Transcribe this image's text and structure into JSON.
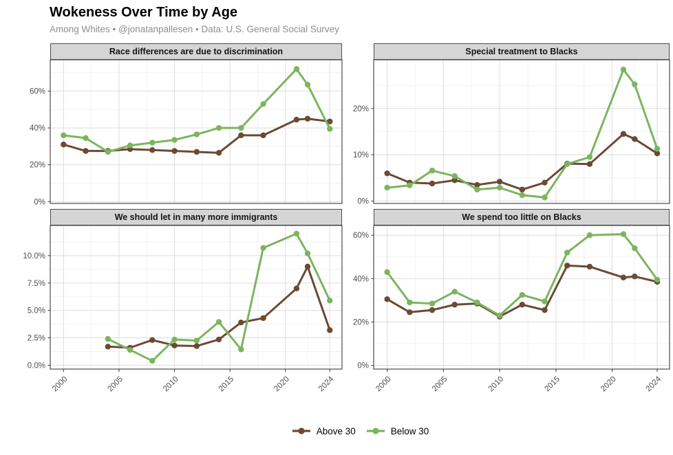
{
  "header": {
    "title": "Wokeness Over Time by Age",
    "subtitle": "Among Whites • @jonatanpallesen • Data: U.S. General Social Survey"
  },
  "legend": {
    "items": [
      {
        "label": "Above 30",
        "color": "#6b4a33"
      },
      {
        "label": "Below 30",
        "color": "#7bb55e"
      }
    ]
  },
  "chart_data": [
    {
      "type": "line",
      "title": "Race differences are due to discrimination",
      "x": [
        2000,
        2002,
        2004,
        2006,
        2008,
        2010,
        2012,
        2014,
        2016,
        2018,
        2021,
        2022,
        2024
      ],
      "series": [
        {
          "name": "Above 30",
          "color": "#6b4a33",
          "values": [
            31,
            27.5,
            27.5,
            28.5,
            28,
            27.5,
            27,
            26.5,
            36,
            36,
            44.5,
            45,
            43.5
          ]
        },
        {
          "name": "Below 30",
          "color": "#7bb55e",
          "values": [
            36,
            34.5,
            27,
            30.5,
            32,
            33.5,
            36.5,
            40,
            40,
            53,
            72,
            63.5,
            39.5
          ]
        }
      ],
      "ylim": [
        -1,
        77
      ],
      "yticks": [
        0,
        20,
        40,
        60
      ],
      "ytick_labels": [
        "0%",
        "20%",
        "40%",
        "60%"
      ],
      "yticks_minor": [
        10,
        30,
        50,
        70
      ],
      "xlim": [
        1998.8,
        2025.1
      ],
      "xticks": [
        2000,
        2005,
        2010,
        2015,
        2020,
        2024
      ],
      "xtick_labels": [
        "2000",
        "2005",
        "2010",
        "2015",
        "2020",
        "2024"
      ],
      "xticks_minor": [
        2002.5,
        2007.5,
        2012.5,
        2017.5,
        2022
      ],
      "grid": true,
      "legend_position": "bottom"
    },
    {
      "type": "line",
      "title": "Special treatment to Blacks",
      "x": [
        2000,
        2002,
        2004,
        2006,
        2008,
        2010,
        2012,
        2014,
        2016,
        2018,
        2021,
        2022,
        2024
      ],
      "series": [
        {
          "name": "Above 30",
          "color": "#6b4a33",
          "values": [
            6,
            4,
            3.8,
            4.5,
            3.5,
            4.2,
            2.5,
            4,
            8.1,
            8,
            14.5,
            13.4,
            10.3
          ]
        },
        {
          "name": "Below 30",
          "color": "#7bb55e",
          "values": [
            2.9,
            3.4,
            6.6,
            5.4,
            2.5,
            2.9,
            1.3,
            0.8,
            8,
            9.5,
            28.4,
            25.2,
            11.3
          ]
        }
      ],
      "ylim": [
        -0.5,
        30.5
      ],
      "yticks": [
        0,
        10,
        20
      ],
      "ytick_labels": [
        "0%",
        "10%",
        "20%"
      ],
      "yticks_minor": [
        5,
        15,
        25
      ],
      "xlim": [
        1998.8,
        2025.1
      ],
      "xticks": [
        2000,
        2005,
        2010,
        2015,
        2020,
        2024
      ],
      "xtick_labels": [
        "2000",
        "2005",
        "2010",
        "2015",
        "2020",
        "2024"
      ],
      "xticks_minor": [
        2002.5,
        2007.5,
        2012.5,
        2017.5,
        2022
      ],
      "grid": true,
      "legend_position": "bottom"
    },
    {
      "type": "line",
      "title": "We should let in many more immigrants",
      "x": [
        2004,
        2006,
        2008,
        2010,
        2012,
        2014,
        2016,
        2018,
        2021,
        2022,
        2024
      ],
      "series": [
        {
          "name": "Above 30",
          "color": "#6b4a33",
          "values": [
            1.7,
            1.6,
            2.3,
            1.8,
            1.75,
            2.35,
            3.9,
            4.3,
            7,
            9,
            3.2
          ]
        },
        {
          "name": "Below 30",
          "color": "#7bb55e",
          "values": [
            2.4,
            1.4,
            0.4,
            2.35,
            2.25,
            3.95,
            1.45,
            10.7,
            12,
            10.2,
            5.9
          ]
        }
      ],
      "ylim": [
        -0.35,
        12.75
      ],
      "yticks": [
        0,
        2.5,
        5,
        7.5,
        10
      ],
      "ytick_labels": [
        "0.0%",
        "2.5%",
        "5.0%",
        "7.5%",
        "10.0%"
      ],
      "yticks_minor": [
        1.25,
        3.75,
        6.25,
        8.75,
        11.25
      ],
      "xlim": [
        1998.8,
        2025.1
      ],
      "xticks": [
        2000,
        2005,
        2010,
        2015,
        2020,
        2024
      ],
      "xtick_labels": [
        "2000",
        "2005",
        "2010",
        "2015",
        "2020",
        "2024"
      ],
      "xticks_minor": [
        2002.5,
        2007.5,
        2012.5,
        2017.5,
        2022
      ],
      "grid": true,
      "legend_position": "bottom"
    },
    {
      "type": "line",
      "title": "We spend too little on Blacks",
      "x": [
        2000,
        2002,
        2004,
        2006,
        2008,
        2010,
        2012,
        2014,
        2016,
        2018,
        2021,
        2022,
        2024
      ],
      "series": [
        {
          "name": "Above 30",
          "color": "#6b4a33",
          "values": [
            30.5,
            24.5,
            25.5,
            28,
            28.5,
            22.5,
            28,
            25.5,
            46,
            45.5,
            40.5,
            41,
            38.5
          ]
        },
        {
          "name": "Below 30",
          "color": "#7bb55e",
          "values": [
            43,
            29,
            28.5,
            34,
            29,
            23,
            32.5,
            29.5,
            52,
            60,
            60.5,
            54,
            39.5
          ]
        }
      ],
      "ylim": [
        -1.7,
        64.5
      ],
      "yticks": [
        0,
        20,
        40,
        60
      ],
      "ytick_labels": [
        "0%",
        "20%",
        "40%",
        "60%"
      ],
      "yticks_minor": [
        10,
        30,
        50
      ],
      "xlim": [
        1998.8,
        2025.1
      ],
      "xticks": [
        2000,
        2005,
        2010,
        2015,
        2020,
        2024
      ],
      "xtick_labels": [
        "2000",
        "2005",
        "2010",
        "2015",
        "2020",
        "2024"
      ],
      "xticks_minor": [
        2002.5,
        2007.5,
        2012.5,
        2017.5,
        2022
      ],
      "grid": true,
      "legend_position": "bottom"
    }
  ]
}
